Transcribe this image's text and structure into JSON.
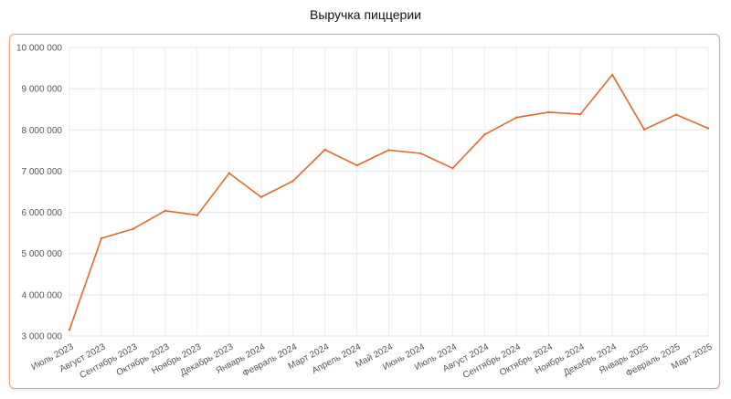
{
  "chart_data": {
    "type": "line",
    "title": "Выручка пиццерии",
    "xlabel": "",
    "ylabel": "",
    "ylim": [
      3000000,
      10000000
    ],
    "y_ticks": [
      {
        "value": 3000000,
        "label": "3 000 000"
      },
      {
        "value": 4000000,
        "label": "4 000 000"
      },
      {
        "value": 5000000,
        "label": "5 000 000"
      },
      {
        "value": 6000000,
        "label": "6 000 000"
      },
      {
        "value": 7000000,
        "label": "7 000 000"
      },
      {
        "value": 8000000,
        "label": "8 000 000"
      },
      {
        "value": 9000000,
        "label": "9 000 000"
      },
      {
        "value": 10000000,
        "label": "10 000 000"
      }
    ],
    "categories": [
      "Июль 2023",
      "Август 2023",
      "Сентябрь 2023",
      "Октябрь 2023",
      "Ноябрь 2023",
      "Декабрь 2023",
      "Январь 2024",
      "Февраль 2024",
      "Март 2024",
      "Апрель 2024",
      "Май 2024",
      "Июнь 2024",
      "Июль 2024",
      "Август 2024",
      "Сентябрь 2024",
      "Октябрь 2024",
      "Ноябрь 2024",
      "Декабрь 2024",
      "Январь 2025",
      "Февраль 2025",
      "Март 2025"
    ],
    "series": [
      {
        "values": [
          3150000,
          5370000,
          5600000,
          6040000,
          5930000,
          6950000,
          6370000,
          6760000,
          7520000,
          7140000,
          7510000,
          7430000,
          7070000,
          7890000,
          8300000,
          8430000,
          8380000,
          9340000,
          8010000,
          8370000,
          8040000
        ],
        "color": "#e06a2c"
      }
    ],
    "grid": true,
    "legend": "none"
  }
}
